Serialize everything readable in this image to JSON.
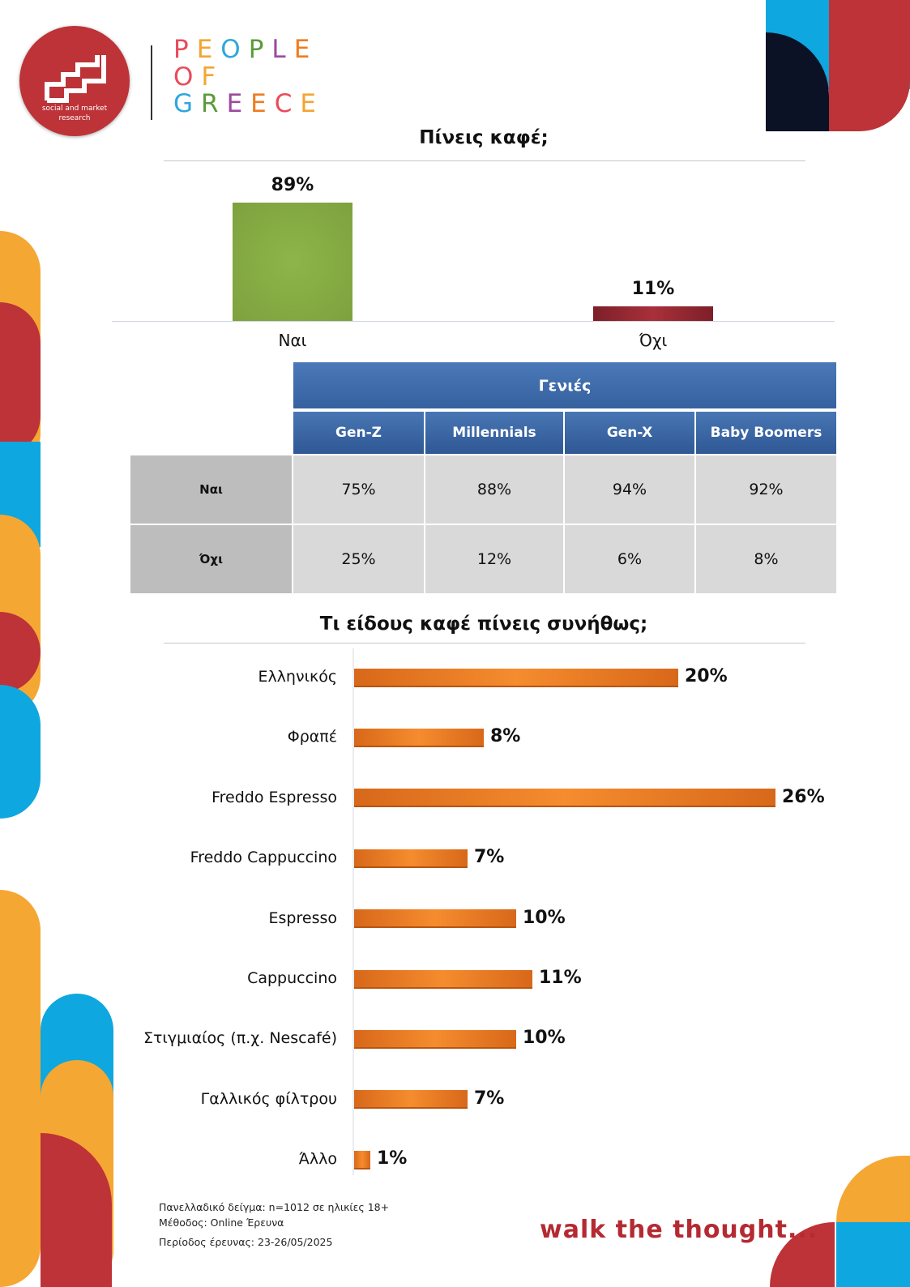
{
  "header": {
    "logo_text": "ςεd",
    "logo_subtitle": "social and market research",
    "brand_lines": [
      "PEOPLE",
      "OF",
      "GREECE"
    ],
    "brand_colors": [
      "#e94b5b",
      "#f3a531",
      "#2fa7de",
      "#5b9b3a",
      "#9b4aa0",
      "#ee7d22"
    ]
  },
  "chart_data": [
    {
      "type": "bar",
      "title": "Πίνεις καφέ;",
      "categories": [
        "Ναι",
        "Όχι"
      ],
      "values": [
        89,
        11
      ],
      "value_labels": [
        "89%",
        "11%"
      ],
      "colors": [
        "#7ea13e",
        "#a8303a"
      ],
      "ylim": [
        0,
        100
      ]
    },
    {
      "type": "bar",
      "orientation": "horizontal",
      "title": "Τι είδους καφέ πίνεις συνήθως;",
      "categories": [
        "Ελληνικός",
        "Φραπέ",
        "Freddo Espresso",
        "Freddo Cappuccino",
        "Espresso",
        "Cappuccino",
        "Στιγμιαίος (π.χ. Nescafé)",
        "Γαλλικός φίλτρου",
        "Άλλο"
      ],
      "values": [
        20,
        8,
        26,
        7,
        10,
        11,
        10,
        7,
        1
      ],
      "value_labels": [
        "20%",
        "8%",
        "26%",
        "7%",
        "10%",
        "11%",
        "10%",
        "7%",
        "1%"
      ],
      "colors": [
        "#ee7d22"
      ]
    }
  ],
  "generations_table": {
    "group_header": "Γενιές",
    "columns": [
      "Gen-Z",
      "Millennials",
      "Gen-X",
      "Baby Boomers"
    ],
    "rows": [
      {
        "label": "Ναι",
        "values": [
          "75%",
          "88%",
          "94%",
          "92%"
        ]
      },
      {
        "label": "Όχι",
        "values": [
          "25%",
          "12%",
          "6%",
          "8%"
        ]
      }
    ]
  },
  "footer": {
    "sample": "Πανελλαδικό δείγμα: n=1012 σε ηλικίες 18+",
    "method": "Μέθοδος: Online Έρευνα",
    "period": "Περίοδος έρευνας:  23-26/05/2025",
    "tagline": "walk the thought..."
  },
  "decor_colors": {
    "orange": "#f5a733",
    "red": "#bd3337",
    "blue": "#0ea7df",
    "navy": "#0b1226"
  }
}
